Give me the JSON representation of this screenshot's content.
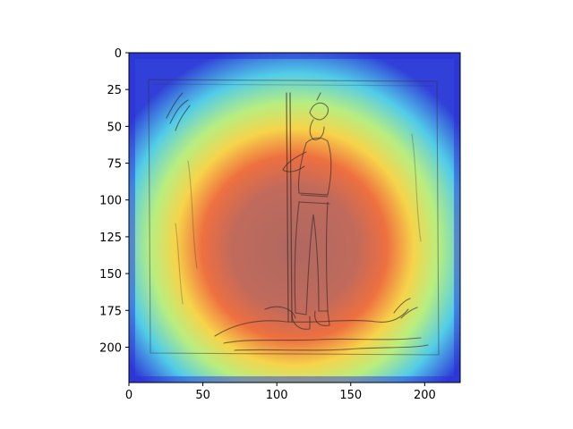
{
  "chart_data": {
    "type": "heatmap",
    "title": "",
    "xlabel": "",
    "ylabel": "",
    "xlim": [
      0,
      224
    ],
    "ylim": [
      224,
      0
    ],
    "y_inverted": true,
    "grid": false,
    "colormap": "jet",
    "overlay_alpha": 0.5,
    "x_ticks": [
      0,
      50,
      100,
      150,
      200
    ],
    "y_ticks": [
      0,
      25,
      50,
      75,
      100,
      125,
      150,
      175,
      200
    ],
    "x_tick_labels": [
      "0",
      "50",
      "100",
      "150",
      "200"
    ],
    "y_tick_labels": [
      "0",
      "25",
      "50",
      "75",
      "100",
      "125",
      "150",
      "175",
      "200"
    ],
    "heat_center": [
      118,
      138
    ],
    "heat_peak": 1.0,
    "background_image": "pencil-sketch-standing-soldier-with-rifle-and-fallen-figure",
    "colors": {
      "low": "#2a2ae0",
      "mid_low": "#3dc8f0",
      "mid": "#a8f080",
      "mid_high": "#f8e040",
      "high": "#f06a30",
      "peak": "#b87a6c",
      "paper": "#d6d0c2",
      "sketch": "#3a2a2a"
    }
  }
}
